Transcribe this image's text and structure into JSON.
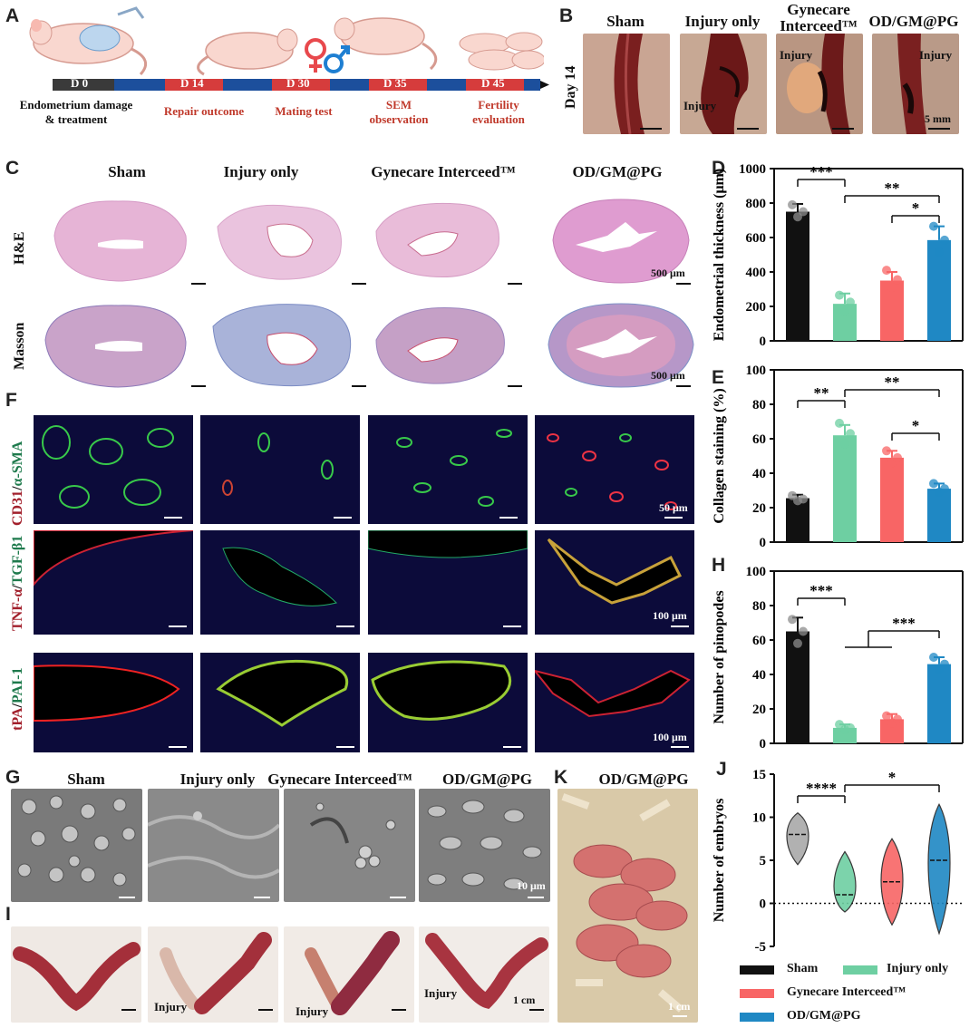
{
  "panel_letters": {
    "a": "A",
    "b": "B",
    "c": "C",
    "d": "D",
    "e": "E",
    "f": "F",
    "g": "G",
    "h": "H",
    "i": "I",
    "j": "J",
    "k": "K"
  },
  "timeline": {
    "days": [
      "D 0",
      "D 14",
      "D 30",
      "D 35",
      "D 45"
    ],
    "captions": [
      "Endometrium damage\n& treatment",
      "Repair outcome",
      "Mating test",
      "SEM\nobservation",
      "Fertility\nevaluation"
    ]
  },
  "groups": [
    "Sham",
    "Injury only",
    "Gynecare Interceed™",
    "OD/GM@PG"
  ],
  "panel_b": {
    "row_label": "Day 14",
    "titles": [
      "Sham",
      "Injury only",
      "Gynecare\nInterceed™",
      "OD/GM@PG"
    ],
    "injury": "Injury",
    "scale": "5 mm"
  },
  "panel_c": {
    "rows": [
      "H&E",
      "Masson"
    ],
    "scale": "500 μm"
  },
  "panel_f": {
    "rows": [
      [
        "CD31",
        "/",
        "α-SMA"
      ],
      [
        "TNF-α",
        "/",
        "TGF-β1"
      ],
      [
        "tPA",
        "/",
        "PAI-1"
      ]
    ],
    "scales": [
      "50 μm",
      "100 μm",
      "100 μm"
    ]
  },
  "panel_g": {
    "scale": "10 μm"
  },
  "panel_i": {
    "injury": "Injury",
    "scale": "1 cm"
  },
  "panel_k": {
    "title": "OD/GM@PG",
    "scale": "1 cm"
  },
  "colors": {
    "sham": "#111111",
    "injury": "#6ecfa2",
    "gynecare": "#f86565",
    "odgm": "#1f88c4"
  },
  "legend": [
    "Sham",
    "Injury only",
    "Gynecare Interceed™",
    "OD/GM@PG"
  ],
  "chart_data": [
    {
      "panel": "D",
      "type": "bar",
      "categories": [
        "Sham",
        "Injury only",
        "Gynecare Interceed™",
        "OD/GM@PG"
      ],
      "values": [
        750,
        215,
        350,
        585
      ],
      "errors": [
        45,
        60,
        50,
        80
      ],
      "points": [
        [
          720,
          750,
          790
        ],
        [
          170,
          225,
          265
        ],
        [
          310,
          355,
          410
        ],
        [
          515,
          585,
          665
        ]
      ],
      "ylabel": "Endometrial thickness (μm)",
      "ylim": [
        0,
        1000
      ],
      "yticks": [
        0,
        200,
        400,
        600,
        800,
        1000
      ],
      "significance": [
        [
          "Sham",
          "Injury only",
          "***"
        ],
        [
          "Injury only",
          "OD/GM@PG",
          "**"
        ],
        [
          "Gynecare Interceed™",
          "OD/GM@PG",
          "*"
        ]
      ]
    },
    {
      "panel": "E",
      "type": "bar",
      "categories": [
        "Sham",
        "Injury only",
        "Gynecare Interceed™",
        "OD/GM@PG"
      ],
      "values": [
        25.5,
        62,
        49,
        31
      ],
      "errors": [
        2,
        6,
        4,
        3
      ],
      "points": [
        [
          24,
          25,
          27
        ],
        [
          57,
          63,
          69
        ],
        [
          46,
          49,
          53
        ],
        [
          29,
          31,
          34
        ]
      ],
      "ylabel": "Collagen staining (%)",
      "ylim": [
        0,
        100
      ],
      "yticks": [
        0,
        20,
        40,
        60,
        80,
        100
      ],
      "significance": [
        [
          "Sham",
          "Injury only",
          "**"
        ],
        [
          "Injury only",
          "OD/GM@PG",
          "**"
        ],
        [
          "Gynecare Interceed™",
          "OD/GM@PG",
          "*"
        ]
      ]
    },
    {
      "panel": "H",
      "type": "bar",
      "categories": [
        "Sham",
        "Injury only",
        "Gynecare Interceed™",
        "OD/GM@PG"
      ],
      "values": [
        65,
        9,
        14,
        46
      ],
      "errors": [
        8,
        2,
        3,
        4
      ],
      "points": [
        [
          58,
          65,
          72
        ],
        [
          8,
          9,
          11
        ],
        [
          12,
          14,
          16
        ],
        [
          43,
          46,
          50
        ]
      ],
      "ylabel": "Number of pinopodes",
      "ylim": [
        0,
        100
      ],
      "yticks": [
        0,
        20,
        40,
        60,
        80,
        100
      ],
      "significance": [
        [
          "Sham",
          "Injury only",
          "***"
        ],
        [
          "Injury only + Gynecare Interceed™",
          "OD/GM@PG",
          "***"
        ]
      ]
    },
    {
      "panel": "J",
      "type": "violin",
      "categories": [
        "Sham",
        "Injury only",
        "Gynecare Interceed™",
        "OD/GM@PG"
      ],
      "medians": [
        8,
        1,
        2.5,
        5
      ],
      "ranges": [
        [
          4.5,
          10.5
        ],
        [
          -1,
          6
        ],
        [
          -2.5,
          7.5
        ],
        [
          -3.5,
          11.5
        ]
      ],
      "ylabel": "Number of embryos",
      "ylim": [
        -5,
        15
      ],
      "yticks": [
        -5,
        0,
        5,
        10,
        15
      ],
      "significance": [
        [
          "Sham",
          "Injury only",
          "****"
        ],
        [
          "Injury only",
          "OD/GM@PG",
          "*"
        ]
      ]
    }
  ]
}
